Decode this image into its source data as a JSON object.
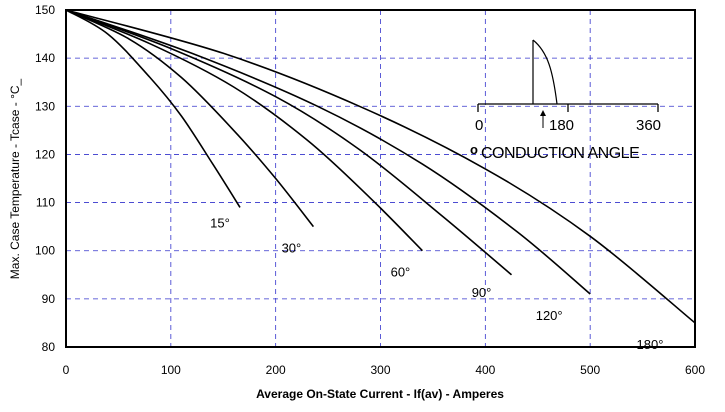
{
  "chart_data": {
    "type": "line",
    "title": "",
    "xlabel": "Average On-State Current - If(av) - Amperes",
    "ylabel": "Max. Case Temperature - Tcase - °C_",
    "xlim": [
      0,
      600
    ],
    "ylim": [
      80,
      150
    ],
    "x_ticks": [
      0,
      100,
      200,
      300,
      400,
      500,
      600
    ],
    "y_ticks": [
      80,
      90,
      100,
      110,
      120,
      130,
      140,
      150
    ],
    "grid": true,
    "legend": "none",
    "colors": {
      "curve": "#000000",
      "grid": "#3333cc",
      "frame": "#000000"
    },
    "series": [
      {
        "name": "15°",
        "x": [
          0,
          40,
          80,
          110,
          140,
          166
        ],
        "y": [
          150,
          145,
          136,
          128,
          118,
          109
        ]
      },
      {
        "name": "30°",
        "x": [
          0,
          60,
          110,
          160,
          200,
          236
        ],
        "y": [
          150,
          144,
          136,
          125,
          115,
          105
        ]
      },
      {
        "name": "60°",
        "x": [
          0,
          80,
          160,
          230,
          290,
          340
        ],
        "y": [
          150,
          143,
          134,
          123,
          111,
          100
        ]
      },
      {
        "name": "90°",
        "x": [
          0,
          100,
          200,
          280,
          360,
          425
        ],
        "y": [
          150,
          142,
          132,
          121,
          107,
          95
        ]
      },
      {
        "name": "120°",
        "x": [
          0,
          120,
          240,
          340,
          430,
          500
        ],
        "y": [
          150,
          141,
          130,
          118,
          104,
          91
        ]
      },
      {
        "name": "180°",
        "x": [
          0,
          150,
          280,
          400,
          500,
          600
        ],
        "y": [
          150,
          141,
          130,
          117,
          103,
          85
        ]
      }
    ],
    "inset": {
      "title": "CONDUCTION ANGLE",
      "marker": "o",
      "tick_labels": [
        "0",
        "180",
        "360"
      ]
    }
  }
}
